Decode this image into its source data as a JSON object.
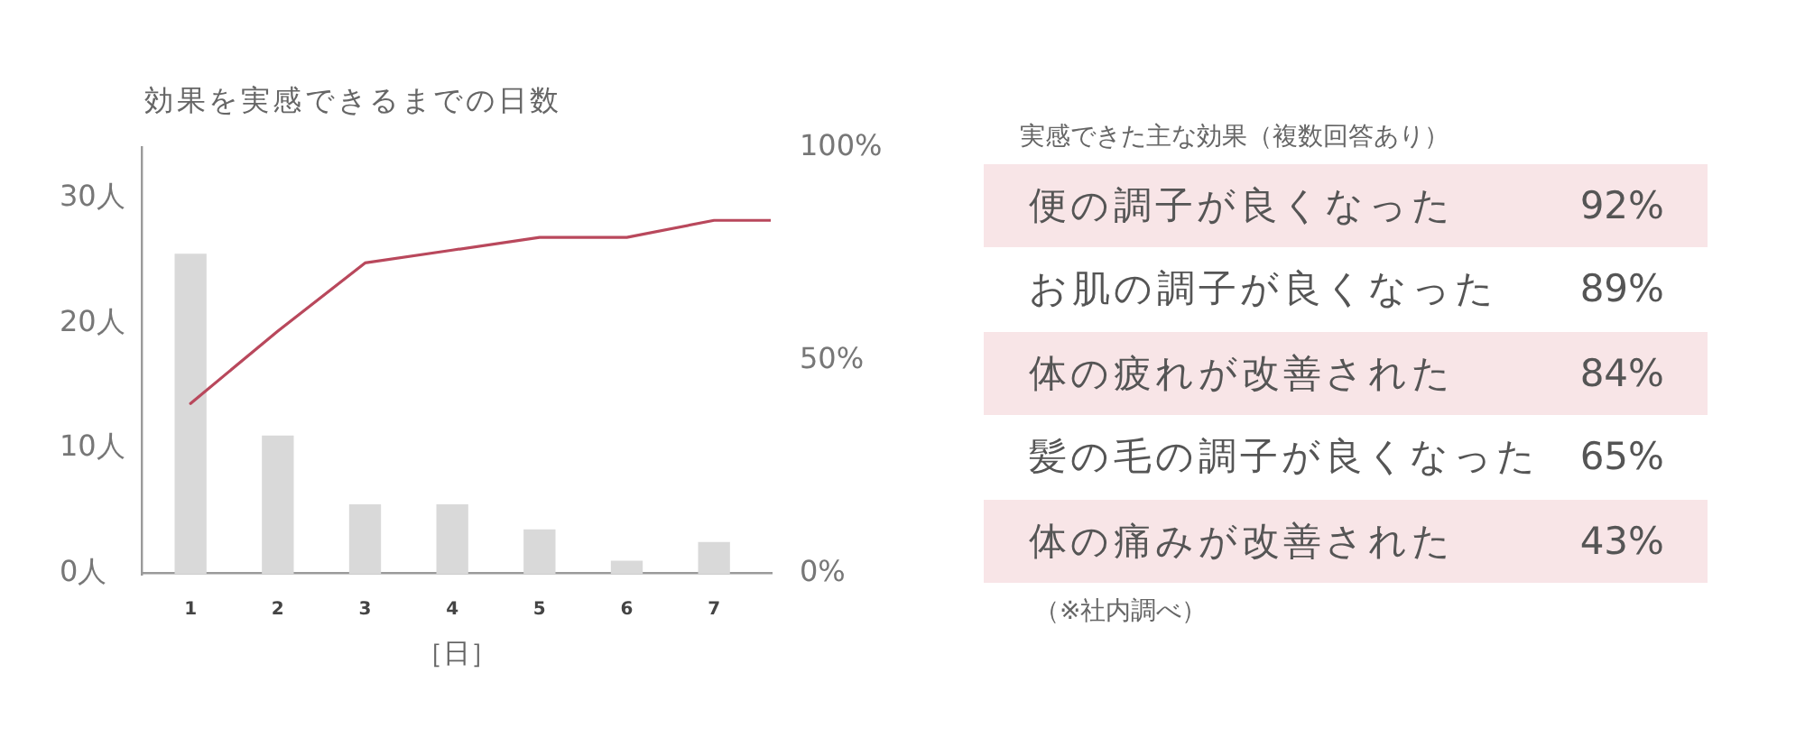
{
  "chart_data": [
    {
      "type": "bar",
      "title": "効果を実感できるまでの日数",
      "xlabel": "［日］",
      "x": [
        1,
        2,
        3,
        4,
        5,
        6,
        7
      ],
      "xlim": [
        0.45,
        7.65
      ],
      "xticks": [
        1,
        2,
        3,
        4,
        5,
        6,
        7
      ],
      "ylim": [
        0,
        34
      ],
      "yticks": [
        {
          "value": 0,
          "label": "0人"
        },
        {
          "value": 10,
          "label": "10人"
        },
        {
          "value": 20,
          "label": "20人"
        },
        {
          "value": 30,
          "label": "30人"
        }
      ],
      "y2lim": [
        0,
        100
      ],
      "y2ticks": [
        {
          "value": 0,
          "label": "0%"
        },
        {
          "value": 50,
          "label": "50%"
        },
        {
          "value": 100,
          "label": "100%"
        }
      ],
      "series": [
        {
          "type": "bar",
          "color": "#d9d9d9",
          "values": [
            25.5,
            11,
            5.5,
            5.5,
            3.5,
            1,
            2.5
          ]
        },
        {
          "type": "line",
          "axis": "y2",
          "color": "#b9485c",
          "x": [
            1,
            2,
            3,
            4,
            5,
            6,
            7,
            7.65
          ],
          "values": [
            40,
            57,
            73,
            76,
            79,
            79,
            83,
            83
          ]
        }
      ]
    },
    {
      "type": "other",
      "title": "実感できた主な効果（複数回答あり）",
      "categories": [
        "便の調子が良くなった",
        "お肌の調子が良くなった",
        "体の疲れが改善された",
        "髪の毛の調子が良くなった",
        "体の痛みが改善された"
      ],
      "value_labels": [
        "92%",
        "89%",
        "84%",
        "65%",
        "43%"
      ],
      "annotations": [
        "（※社内調べ）"
      ]
    }
  ]
}
